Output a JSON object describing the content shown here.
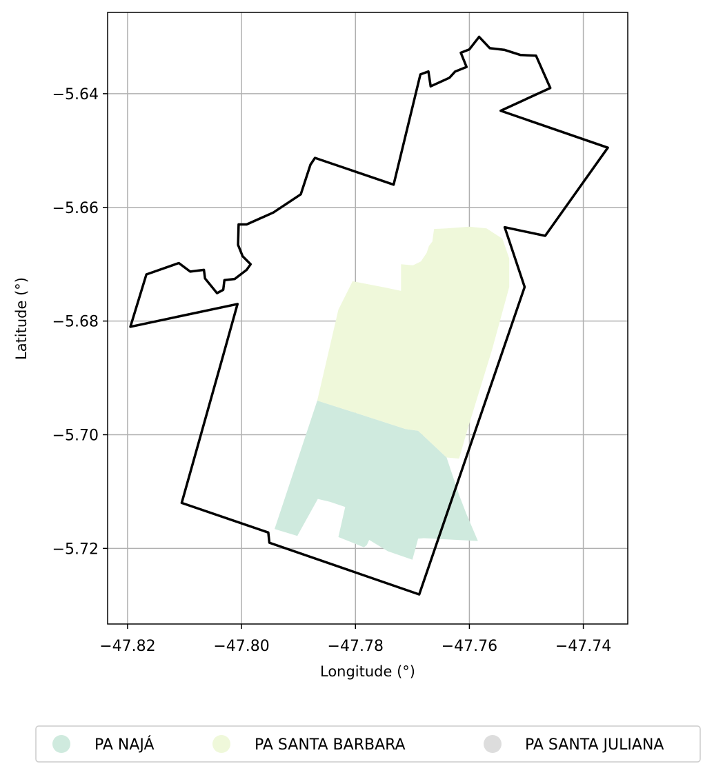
{
  "chart_data": {
    "type": "map",
    "xlabel": "Longitude (°)",
    "ylabel": "Latitude (°)",
    "xlim": [
      -47.8235,
      -47.7322
    ],
    "ylim": [
      -5.7333,
      -5.6257
    ],
    "xticks": [
      -47.82,
      -47.8,
      -47.78,
      -47.76,
      -47.74
    ],
    "yticks": [
      -5.64,
      -5.66,
      -5.68,
      -5.7,
      -5.72
    ],
    "xtick_labels": [
      "−47.82",
      "−47.80",
      "−47.78",
      "−47.76",
      "−47.74"
    ],
    "ytick_labels": [
      "−5.64",
      "−5.66",
      "−5.68",
      "−5.70",
      "−5.72"
    ],
    "grid": true,
    "legend_position": "bottom",
    "boundary": {
      "stroke": "#000000",
      "points": [
        [
          -47.8195,
          -5.681
        ],
        [
          -47.8167,
          -5.6718
        ],
        [
          -47.811,
          -5.6698
        ],
        [
          -47.809,
          -5.6713
        ],
        [
          -47.8066,
          -5.671
        ],
        [
          -47.8064,
          -5.6725
        ],
        [
          -47.8043,
          -5.6751
        ],
        [
          -47.8032,
          -5.6745
        ],
        [
          -47.803,
          -5.6728
        ],
        [
          -47.8012,
          -5.6726
        ],
        [
          -47.7991,
          -5.671
        ],
        [
          -47.7984,
          -5.67
        ],
        [
          -47.7998,
          -5.6686
        ],
        [
          -47.8006,
          -5.6666
        ],
        [
          -47.8005,
          -5.663
        ],
        [
          -47.7991,
          -5.663
        ],
        [
          -47.7944,
          -5.6609
        ],
        [
          -47.7896,
          -5.6577
        ],
        [
          -47.7879,
          -5.6525
        ],
        [
          -47.7871,
          -5.6513
        ],
        [
          -47.7733,
          -5.656
        ],
        [
          -47.7686,
          -5.6366
        ],
        [
          -47.7672,
          -5.6361
        ],
        [
          -47.7668,
          -5.6387
        ],
        [
          -47.7635,
          -5.6372
        ],
        [
          -47.7625,
          -5.6361
        ],
        [
          -47.7605,
          -5.6353
        ],
        [
          -47.7615,
          -5.6328
        ],
        [
          -47.76,
          -5.6322
        ],
        [
          -47.7583,
          -5.63
        ],
        [
          -47.7564,
          -5.632
        ],
        [
          -47.7538,
          -5.6323
        ],
        [
          -47.751,
          -5.6332
        ],
        [
          -47.7483,
          -5.6333
        ],
        [
          -47.7458,
          -5.639
        ],
        [
          -47.7545,
          -5.643
        ],
        [
          -47.7357,
          -5.6495
        ],
        [
          -47.7467,
          -5.665
        ],
        [
          -47.7538,
          -5.6635
        ],
        [
          -47.7503,
          -5.674
        ],
        [
          -47.7688,
          -5.7281
        ],
        [
          -47.7951,
          -5.719
        ],
        [
          -47.7953,
          -5.7172
        ],
        [
          -47.8105,
          -5.712
        ],
        [
          -47.8032,
          -5.686
        ],
        [
          -47.8007,
          -5.677
        ]
      ]
    },
    "regions": [
      {
        "name": "PA NAJÁ",
        "color": "#cfeade",
        "points": [
          [
            -47.7867,
            -5.694
          ],
          [
            -47.7789,
            -5.6965
          ],
          [
            -47.7712,
            -5.699
          ],
          [
            -47.769,
            -5.6993
          ],
          [
            -47.764,
            -5.704
          ],
          [
            -47.7618,
            -5.7106
          ],
          [
            -47.7605,
            -5.714
          ],
          [
            -47.7585,
            -5.7187
          ],
          [
            -47.768,
            -5.7182
          ],
          [
            -47.769,
            -5.7183
          ],
          [
            -47.77,
            -5.722
          ],
          [
            -47.7743,
            -5.7205
          ],
          [
            -47.7776,
            -5.7185
          ],
          [
            -47.778,
            -5.7194
          ],
          [
            -47.7785,
            -5.7198
          ],
          [
            -47.783,
            -5.718
          ],
          [
            -47.7818,
            -5.7127
          ],
          [
            -47.7845,
            -5.7118
          ],
          [
            -47.7866,
            -5.7113
          ],
          [
            -47.7902,
            -5.7178
          ],
          [
            -47.7942,
            -5.7166
          ]
        ]
      },
      {
        "name": "PA SANTA BARBARA",
        "color": "#eff8da",
        "points": [
          [
            -47.7867,
            -5.694
          ],
          [
            -47.7789,
            -5.6965
          ],
          [
            -47.7712,
            -5.699
          ],
          [
            -47.769,
            -5.6993
          ],
          [
            -47.764,
            -5.704
          ],
          [
            -47.7618,
            -5.7042
          ],
          [
            -47.7603,
            -5.699
          ],
          [
            -47.756,
            -5.685
          ],
          [
            -47.753,
            -5.674
          ],
          [
            -47.753,
            -5.669
          ],
          [
            -47.7542,
            -5.6655
          ],
          [
            -47.757,
            -5.6637
          ],
          [
            -47.76,
            -5.6634
          ],
          [
            -47.764,
            -5.6637
          ],
          [
            -47.7662,
            -5.6638
          ],
          [
            -47.7665,
            -5.666
          ],
          [
            -47.7671,
            -5.6668
          ],
          [
            -47.7675,
            -5.668
          ],
          [
            -47.7685,
            -5.6695
          ],
          [
            -47.7699,
            -5.6702
          ],
          [
            -47.772,
            -5.67
          ],
          [
            -47.772,
            -5.6747
          ],
          [
            -47.7748,
            -5.6741
          ],
          [
            -47.7805,
            -5.673
          ],
          [
            -47.783,
            -5.678
          ]
        ]
      }
    ],
    "legend": [
      {
        "label": "PA NAJÁ",
        "color": "#cfeade"
      },
      {
        "label": "PA SANTA BARBARA",
        "color": "#eff8da"
      },
      {
        "label": "PA SANTA JULIANA",
        "color": "#dddddd"
      }
    ]
  }
}
